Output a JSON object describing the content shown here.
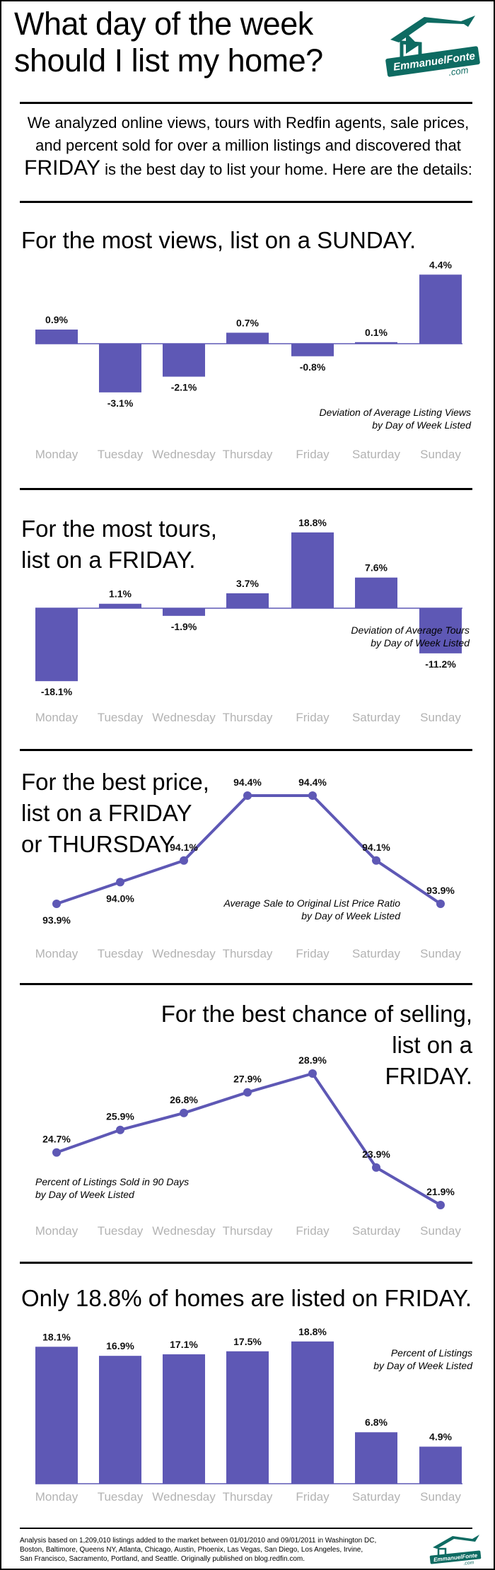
{
  "title_lines": [
    "What day of the week",
    "should I list my home?"
  ],
  "logo": {
    "text": "EmmanuelFonte",
    "sub": ".com",
    "icon": "house-roof-logo"
  },
  "intro": {
    "part1": "We analyzed online views, tours with Redfin agents, sale prices, and percent sold for over a million listings and discovered that",
    "highlight": "FRIDAY",
    "part2": "is the best day to list your home.  Here are the details:"
  },
  "sections": [
    {
      "title_lines": [
        "For the most views, list on a SUNDAY."
      ]
    },
    {
      "title_lines": [
        "For the most tours,",
        "list on a FRIDAY."
      ]
    },
    {
      "title_lines": [
        "For the best price,",
        "list on a FRIDAY",
        "or THURSDAY"
      ]
    },
    {
      "title_lines": [
        "For the best chance of selling,",
        "list on a",
        "FRIDAY."
      ]
    },
    {
      "title_lines": [
        "Only 18.8% of homes are listed on FRIDAY."
      ]
    }
  ],
  "colors": {
    "bar": "#5e58b5",
    "axis": "#5e58b5",
    "day_label": "#b3b3b3"
  },
  "chart_data": [
    {
      "type": "bar",
      "categories": [
        "Monday",
        "Tuesday",
        "Wednesday",
        "Thursday",
        "Friday",
        "Saturday",
        "Sunday"
      ],
      "values": [
        0.9,
        -3.1,
        -2.1,
        0.7,
        -0.8,
        0.1,
        4.4
      ],
      "labels": [
        "0.9%",
        "-3.1%",
        "-2.1%",
        "0.7%",
        "-0.8%",
        "0.1%",
        "4.4%"
      ],
      "note": [
        "Deviation of Average Listing Views",
        "by Day of Week Listed"
      ],
      "note_pos": "bottom-right"
    },
    {
      "type": "bar",
      "categories": [
        "Monday",
        "Tuesday",
        "Wednesday",
        "Thursday",
        "Friday",
        "Saturday",
        "Sunday"
      ],
      "values": [
        -18.1,
        1.1,
        -1.9,
        3.7,
        18.8,
        7.6,
        -11.2
      ],
      "labels": [
        "-18.1%",
        "1.1%",
        "-1.9%",
        "3.7%",
        "18.8%",
        "7.6%",
        "-11.2%"
      ],
      "note": [
        "Deviation of Average Tours",
        "by Day of Week Listed"
      ],
      "note_pos": "bottom-right"
    },
    {
      "type": "line",
      "categories": [
        "Monday",
        "Tuesday",
        "Wednesday",
        "Thursday",
        "Friday",
        "Saturday",
        "Sunday"
      ],
      "values": [
        93.9,
        94.0,
        94.1,
        94.4,
        94.4,
        94.1,
        93.9
      ],
      "labels": [
        "93.9%",
        "94.0%",
        "94.1%",
        "94.4%",
        "94.4%",
        "94.1%",
        "93.9%"
      ],
      "note": [
        "Average Sale to Original List Price Ratio",
        "by Day of Week Listed"
      ],
      "note_pos": "bottom-right"
    },
    {
      "type": "line",
      "categories": [
        "Monday",
        "Tuesday",
        "Wednesday",
        "Thursday",
        "Friday",
        "Saturday",
        "Sunday"
      ],
      "values": [
        24.7,
        25.9,
        26.8,
        27.9,
        28.9,
        23.9,
        21.9
      ],
      "labels": [
        "24.7%",
        "25.9%",
        "26.8%",
        "27.9%",
        "28.9%",
        "23.9%",
        "21.9%"
      ],
      "note": [
        "Percent of Listings Sold in 90 Days",
        "by Day of Week Listed"
      ],
      "note_pos": "bottom-left"
    },
    {
      "type": "bar",
      "categories": [
        "Monday",
        "Tuesday",
        "Wednesday",
        "Thursday",
        "Friday",
        "Saturday",
        "Sunday"
      ],
      "values": [
        18.1,
        16.9,
        17.1,
        17.5,
        18.8,
        6.8,
        4.9
      ],
      "labels": [
        "18.1%",
        "16.9%",
        "17.1%",
        "17.5%",
        "18.8%",
        "6.8%",
        "4.9%"
      ],
      "note": [
        "Percent of Listings",
        "by Day of Week Listed"
      ],
      "note_pos": "top-right"
    }
  ],
  "footer": {
    "lines": [
      "Analysis based on 1,209,010 listings added to the market between 01/01/2010 and 09/01/2011 in Washington DC,",
      "Boston, Baltimore, Queens NY, Atlanta, Chicago, Austin, Phoenix, Las Vegas, San Diego, Los Angeles, Irvine,",
      "San Francisco, Sacramento, Portland, and Seattle.   Originally published on blog.redfin.com."
    ]
  }
}
